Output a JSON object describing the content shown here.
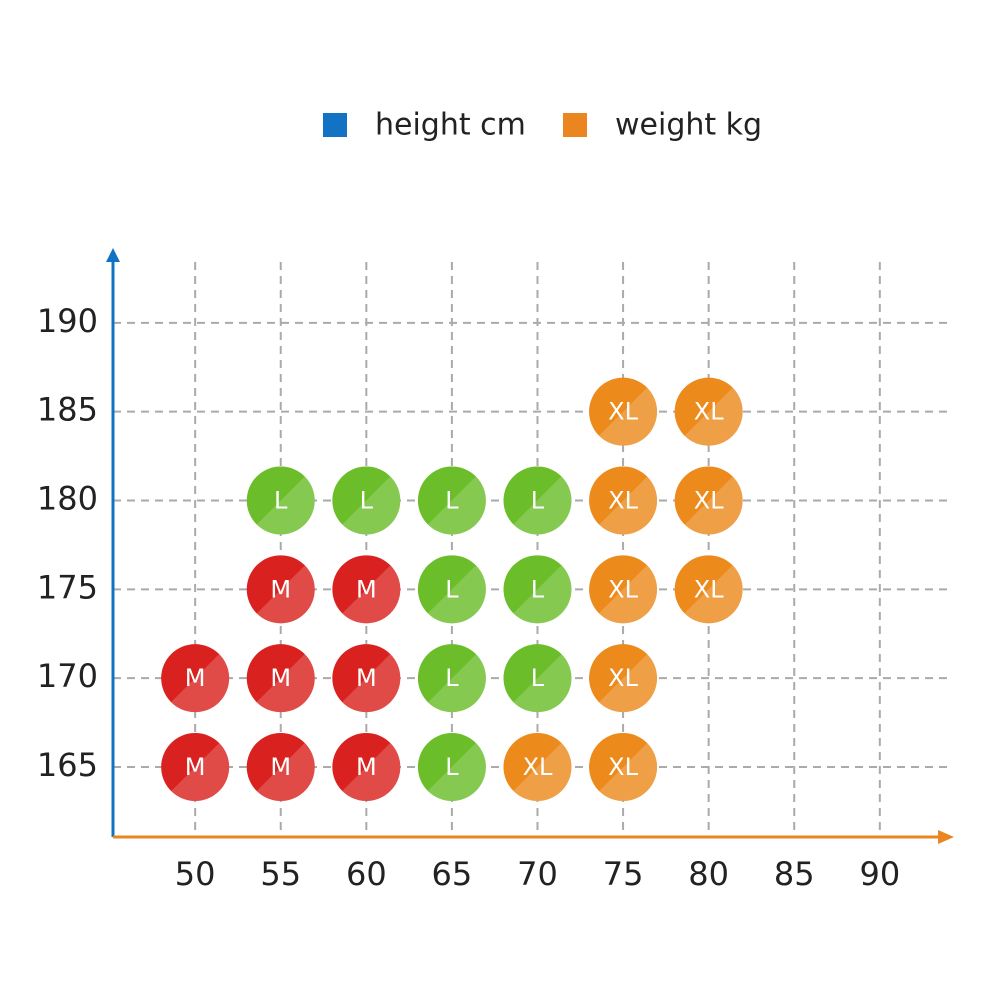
{
  "chart_data": {
    "type": "scatter",
    "legend": [
      {
        "label": "height  cm",
        "color": "#1273c4"
      },
      {
        "label": "weight  kg",
        "color": "#ea8520"
      }
    ],
    "series": [
      {
        "name": "M",
        "color": "#d9221f",
        "x": [
          50,
          50,
          55,
          55,
          55,
          60,
          60,
          60
        ],
        "y": [
          170,
          165,
          175,
          170,
          165,
          175,
          170,
          165
        ]
      },
      {
        "name": "L",
        "color": "#6cbd2a",
        "x": [
          55,
          60,
          65,
          70,
          65,
          70,
          65,
          70,
          65
        ],
        "y": [
          180,
          180,
          180,
          180,
          175,
          175,
          170,
          170,
          165
        ]
      },
      {
        "name": "XL",
        "color": "#ec8a1c",
        "x": [
          75,
          80,
          75,
          80,
          75,
          80,
          75,
          70,
          75
        ],
        "y": [
          185,
          185,
          180,
          180,
          175,
          175,
          170,
          165,
          165
        ]
      }
    ],
    "xlim": [
      45.2,
      94.1
    ],
    "ylim": [
      161.06,
      194.1
    ],
    "xticks": [
      50,
      55,
      60,
      65,
      70,
      75,
      80,
      85,
      90
    ],
    "yticks": [
      165,
      170,
      175,
      180,
      185,
      190
    ],
    "grid": true
  }
}
